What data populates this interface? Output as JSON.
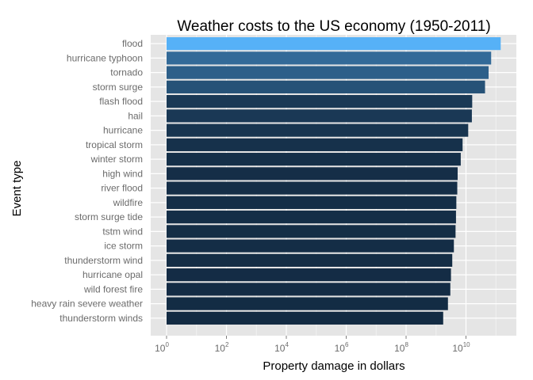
{
  "chart_data": {
    "type": "bar",
    "orientation": "horizontal",
    "title": "Weather costs to the US economy (1950-2011)",
    "xlabel": "Property damage in dollars",
    "ylabel": "Event type",
    "x_scale": "log10",
    "xlim": [
      1,
      300000000000
    ],
    "x_ticks": [
      {
        "value": 1,
        "base": "10",
        "exp": "0"
      },
      {
        "value": 100,
        "base": "10",
        "exp": "2"
      },
      {
        "value": 10000,
        "base": "10",
        "exp": "4"
      },
      {
        "value": 1000000,
        "base": "10",
        "exp": "6"
      },
      {
        "value": 100000000,
        "base": "10",
        "exp": "8"
      },
      {
        "value": 10000000000,
        "base": "10",
        "exp": "10"
      }
    ],
    "grid": true,
    "legend": "none",
    "categories": [
      "flood",
      "hurricane typhoon",
      "tornado",
      "storm surge",
      "flash flood",
      "hail",
      "hurricane",
      "tropical storm",
      "winter storm",
      "high wind",
      "river flood",
      "wildfire",
      "storm surge tide",
      "tstm wind",
      "ice storm",
      "thunderstorm wind",
      "hurricane opal",
      "wild forest fire",
      "heavy rain severe weather",
      "thunderstorm winds"
    ],
    "values": [
      144657709807,
      69305840000,
      56937160779,
      43323536000,
      16140812067,
      15732267048,
      11868319010,
      7703890550,
      6688497251,
      5270046295,
      5118945500,
      4765114000,
      4641188000,
      4484928495,
      3944927860,
      3483122472,
      3152846000,
      3001829500,
      2500000000,
      1733452850
    ],
    "colors": {
      "low": "#132b43",
      "high": "#56b1f7",
      "panel": "#e5e5e5",
      "grid_major": "#ffffff",
      "grid_minor": "#f2f2f2"
    }
  }
}
